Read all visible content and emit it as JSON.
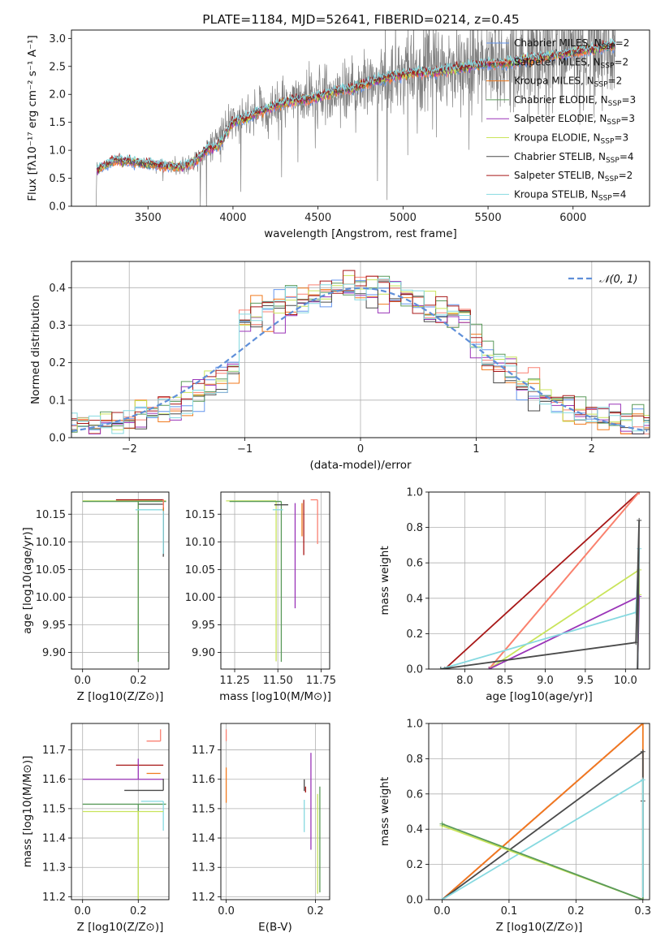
{
  "figure": {
    "title": "PLATE=1184, MJD=52641, FIBERID=0214, z=0.45"
  },
  "colors": {
    "data_grey": "#808080",
    "chabrier_miles": "#6495ED",
    "salpeter_miles": "#FA8072",
    "kroupa_miles": "#F07A1E",
    "chabrier_elodie": "#5A9A5A",
    "salpeter_elodie": "#9A34B8",
    "kroupa_elodie": "#C9E45A",
    "chabrier_stelib": "#4A4A4A",
    "salpeter_stelib": "#A81818",
    "kroupa_stelib": "#86D9E0",
    "normal_curve": "#5F8FD9",
    "grid": "#b0b0b0"
  },
  "legends": {
    "spectrum": [
      {
        "pre": "Chabrier MILES, N",
        "sub": "SSP",
        "post": "=2",
        "color_key": "chabrier_miles"
      },
      {
        "pre": "Salpeter MILES, N",
        "sub": "SSP",
        "post": "=2",
        "color_key": "salpeter_miles"
      },
      {
        "pre": "Kroupa MILES, N",
        "sub": "SSP",
        "post": "=2",
        "color_key": "kroupa_miles"
      },
      {
        "pre": "Chabrier ELODIE, N",
        "sub": "SSP",
        "post": "=3",
        "color_key": "chabrier_elodie"
      },
      {
        "pre": "Salpeter ELODIE, N",
        "sub": "SSP",
        "post": "=3",
        "color_key": "salpeter_elodie"
      },
      {
        "pre": "Kroupa ELODIE, N",
        "sub": "SSP",
        "post": "=3",
        "color_key": "kroupa_elodie"
      },
      {
        "pre": "Chabrier STELIB, N",
        "sub": "SSP",
        "post": "=4",
        "color_key": "chabrier_stelib"
      },
      {
        "pre": "Salpeter STELIB, N",
        "sub": "SSP",
        "post": "=2",
        "color_key": "salpeter_stelib"
      },
      {
        "pre": "Kroupa STELIB, N",
        "sub": "SSP",
        "post": "=4",
        "color_key": "kroupa_stelib"
      }
    ],
    "hist": [
      {
        "label": "𝒩(0, 1)",
        "color_key": "normal_curve"
      }
    ]
  },
  "chart_data": [
    {
      "id": "spectrum",
      "type": "line",
      "title": "PLATE=1184, MJD=52641, FIBERID=0214, z=0.45",
      "xlabel": "wavelength [Angstrom, rest frame]",
      "ylabel": "Flux [fλ10⁻¹⁷ erg cm⁻² s⁻¹ A⁻¹]",
      "xlim": [
        3050,
        6450
      ],
      "ylim": [
        0,
        3.15
      ],
      "xticks": [
        3500,
        4000,
        4500,
        5000,
        5500,
        6000
      ],
      "yticks": [
        0.0,
        0.5,
        1.0,
        1.5,
        2.0,
        2.5,
        3.0
      ],
      "grid": false,
      "legend_loc": "upper right",
      "continuum_knots": {
        "x": [
          3200,
          3300,
          3400,
          3500,
          3600,
          3700,
          3800,
          3900,
          4000,
          4100,
          4200,
          4300,
          4400,
          4500,
          4600,
          4700,
          4800,
          4900,
          5000,
          5100,
          5200,
          5300,
          5400,
          5500,
          5600,
          5700,
          5800,
          5900,
          6000,
          6100,
          6200,
          6250
        ],
        "y": [
          0.65,
          0.82,
          0.8,
          0.75,
          0.72,
          0.7,
          0.85,
          1.2,
          1.5,
          1.6,
          1.75,
          1.85,
          1.9,
          1.95,
          2.05,
          2.1,
          2.2,
          2.3,
          2.35,
          2.4,
          2.4,
          2.45,
          2.5,
          2.55,
          2.55,
          2.6,
          2.65,
          2.7,
          2.75,
          2.8,
          2.85,
          2.9
        ]
      },
      "series": [
        {
          "name": "Chabrier MILES, N_SSP=2",
          "color_key": "chabrier_miles"
        },
        {
          "name": "Salpeter MILES, N_SSP=2",
          "color_key": "salpeter_miles"
        },
        {
          "name": "Kroupa MILES, N_SSP=2",
          "color_key": "kroupa_miles"
        },
        {
          "name": "Chabrier ELODIE, N_SSP=3",
          "color_key": "chabrier_elodie"
        },
        {
          "name": "Salpeter ELODIE, N_SSP=3",
          "color_key": "salpeter_elodie"
        },
        {
          "name": "Kroupa ELODIE, N_SSP=3",
          "color_key": "kroupa_elodie"
        },
        {
          "name": "Chabrier STELIB, N_SSP=4",
          "color_key": "chabrier_stelib"
        },
        {
          "name": "Salpeter STELIB, N_SSP=2",
          "color_key": "salpeter_stelib"
        },
        {
          "name": "Kroupa STELIB, N_SSP=4",
          "color_key": "kroupa_stelib"
        }
      ]
    },
    {
      "id": "residuals",
      "type": "line",
      "xlabel": "(data-model)/error",
      "ylabel": "Normed distribution",
      "xlim": [
        -2.5,
        2.5
      ],
      "ylim": [
        0,
        0.47
      ],
      "xticks": [
        -2,
        -1,
        0,
        1,
        2
      ],
      "yticks": [
        0.0,
        0.1,
        0.2,
        0.3,
        0.4
      ],
      "grid": true,
      "legend_loc": "upper right",
      "normal_curve": {
        "mean": 0,
        "sigma": 1,
        "label": "𝒩(0, 1)"
      },
      "hist_bin_width": 0.1,
      "hist_offsets": [
        0.0,
        0.012,
        -0.01,
        0.018,
        -0.015,
        0.006,
        -0.02,
        0.022,
        -0.005
      ]
    },
    {
      "id": "age-vs-Z",
      "type": "scatter",
      "xlabel": "Z [log10(Z/Z⊙)]",
      "ylabel": "age  [log10(age/yr)]",
      "xlim": [
        -0.04,
        0.31
      ],
      "ylim": [
        9.87,
        10.19
      ],
      "xticks": [
        0.0,
        0.2
      ],
      "yticks": [
        9.9,
        9.95,
        10.0,
        10.05,
        10.1,
        10.15
      ],
      "grid": true,
      "crosses": [
        {
          "color_key": "kroupa_elodie",
          "x": 0.2,
          "xerr": [
            0.2,
            0.1
          ],
          "y": 10.174,
          "yerr": [
            0.29,
            0.0
          ]
        },
        {
          "color_key": "chabrier_elodie",
          "x": 0.2,
          "xerr": [
            0.2,
            0.1
          ],
          "y": 10.173,
          "yerr": [
            0.29,
            0.0
          ]
        },
        {
          "color_key": "salpeter_stelib",
          "x": 0.29,
          "xerr": [
            0.17,
            0.0
          ],
          "y": 10.176,
          "yerr": [
            0.1,
            0.0
          ]
        },
        {
          "color_key": "chabrier_stelib",
          "x": 0.29,
          "xerr": [
            0.09,
            0.0
          ],
          "y": 10.168,
          "yerr": [
            0.095,
            0.0
          ]
        },
        {
          "color_key": "kroupa_stelib",
          "x": 0.29,
          "xerr": [
            0.1,
            0.0
          ],
          "y": 10.158,
          "yerr": [
            0.08,
            0.0
          ]
        },
        {
          "color_key": "kroupa_miles",
          "x": 0.29,
          "xerr": [
            0.0,
            0.0
          ],
          "y": 10.176,
          "yerr": [
            0.02,
            0.0
          ]
        },
        {
          "color_key": "salpeter_miles",
          "x": 0.29,
          "xerr": [
            0.0,
            0.0
          ],
          "y": 10.177,
          "yerr": [
            0.015,
            0.0
          ]
        }
      ]
    },
    {
      "id": "age-vs-mass",
      "type": "scatter",
      "xlabel": "mass [log10(M/M⊙)]",
      "ylabel": "",
      "xlim": [
        11.17,
        11.8
      ],
      "ylim": [
        9.87,
        10.19
      ],
      "xticks": [
        11.25,
        11.5,
        11.75
      ],
      "yticks": [
        9.9,
        9.95,
        10.0,
        10.05,
        10.1,
        10.15
      ],
      "grid": true,
      "crosses": [
        {
          "color_key": "kroupa_elodie",
          "x": 11.49,
          "xerr": [
            0.29,
            0.0
          ],
          "y": 10.174,
          "yerr": [
            0.29,
            0.0
          ]
        },
        {
          "color_key": "chabrier_elodie",
          "x": 11.52,
          "xerr": [
            0.3,
            0.0
          ],
          "y": 10.173,
          "yerr": [
            0.29,
            0.0
          ]
        },
        {
          "color_key": "kroupa_stelib",
          "x": 11.53,
          "xerr": [
            0.06,
            0.0
          ],
          "y": 10.158,
          "yerr": [
            0.0,
            0.0
          ]
        },
        {
          "color_key": "chabrier_stelib",
          "x": 11.56,
          "xerr": [
            0.08,
            0.0
          ],
          "y": 10.167,
          "yerr": [
            0.0,
            0.0
          ]
        },
        {
          "color_key": "salpeter_elodie",
          "x": 11.6,
          "xerr": [
            0.0,
            0.0
          ],
          "y": 10.17,
          "yerr": [
            0.19,
            0.0
          ]
        },
        {
          "color_key": "kroupa_miles",
          "x": 11.64,
          "xerr": [
            0.0,
            0.0
          ],
          "y": 10.17,
          "yerr": [
            0.06,
            0.0
          ]
        },
        {
          "color_key": "salpeter_stelib",
          "x": 11.65,
          "xerr": [
            0.0,
            0.0
          ],
          "y": 10.176,
          "yerr": [
            0.1,
            0.0
          ]
        },
        {
          "color_key": "salpeter_miles",
          "x": 11.73,
          "xerr": [
            0.04,
            0.0
          ],
          "y": 10.176,
          "yerr": [
            0.08,
            0.0
          ]
        }
      ]
    },
    {
      "id": "weight-vs-age",
      "type": "line",
      "xlabel": "age  [log10(age/yr)]",
      "ylabel": "mass weight",
      "xlim": [
        7.55,
        10.3
      ],
      "ylim": [
        0,
        1.0
      ],
      "xticks": [
        8.0,
        8.5,
        9.0,
        9.5,
        10.0
      ],
      "yticks": [
        0.0,
        0.2,
        0.4,
        0.6,
        0.8,
        1.0
      ],
      "grid": true,
      "series": [
        {
          "color_key": "salpeter_stelib",
          "x": [
            7.75,
            10.17
          ],
          "y": [
            0.0,
            1.0
          ]
        },
        {
          "color_key": "kroupa_miles",
          "x": [
            8.3,
            10.17
          ],
          "y": [
            0.0,
            1.0
          ]
        },
        {
          "color_key": "salpeter_miles",
          "x": [
            8.3,
            10.17
          ],
          "y": [
            0.0,
            1.0
          ]
        },
        {
          "color_key": "kroupa_elodie",
          "x": [
            8.3,
            10.17,
            10.17,
            10.15
          ],
          "y": [
            0.0,
            0.56,
            0.42,
            0.0
          ]
        },
        {
          "color_key": "salpeter_elodie",
          "x": [
            8.3,
            10.17,
            10.15
          ],
          "y": [
            0.0,
            0.41,
            0.0
          ]
        },
        {
          "color_key": "kroupa_stelib",
          "x": [
            7.7,
            10.13,
            10.17,
            10.15
          ],
          "y": [
            0.0,
            0.32,
            0.68,
            0.0
          ]
        },
        {
          "color_key": "chabrier_stelib",
          "x": [
            7.7,
            10.13,
            10.17,
            10.15
          ],
          "y": [
            0.0,
            0.15,
            0.84,
            0.0
          ]
        }
      ]
    },
    {
      "id": "mass-vs-Z",
      "type": "scatter",
      "xlabel": "Z [log10(Z/Z⊙)]",
      "ylabel": "mass [log10(M/M⊙)]",
      "xlim": [
        -0.04,
        0.31
      ],
      "ylim": [
        11.19,
        11.79
      ],
      "xticks": [
        0.0,
        0.2
      ],
      "yticks": [
        11.2,
        11.3,
        11.4,
        11.5,
        11.6,
        11.7
      ],
      "grid": true,
      "crosses": [
        {
          "color_key": "salpeter_miles",
          "x": 0.28,
          "xerr": [
            0.05,
            0.0
          ],
          "y": 11.73,
          "yerr": [
            0.0,
            0.04
          ]
        },
        {
          "color_key": "salpeter_stelib",
          "x": 0.24,
          "xerr": [
            0.12,
            0.05
          ],
          "y": 11.648,
          "yerr": [
            0.0,
            0.0
          ]
        },
        {
          "color_key": "salpeter_elodie",
          "x": 0.2,
          "xerr": [
            0.2,
            0.09
          ],
          "y": 11.6,
          "yerr": [
            0.0,
            0.07
          ]
        },
        {
          "color_key": "kroupa_miles",
          "x": 0.28,
          "xerr": [
            0.05,
            0.0
          ],
          "y": 11.62,
          "yerr": [
            0.0,
            0.0
          ]
        },
        {
          "color_key": "chabrier_stelib",
          "x": 0.29,
          "xerr": [
            0.14,
            0.0
          ],
          "y": 11.562,
          "yerr": [
            0.0,
            0.04
          ]
        },
        {
          "color_key": "chabrier_elodie",
          "x": 0.2,
          "xerr": [
            0.2,
            0.1
          ],
          "y": 11.515,
          "yerr": [
            0.32,
            0.0
          ]
        },
        {
          "color_key": "kroupa_stelib",
          "x": 0.29,
          "xerr": [
            0.08,
            0.0
          ],
          "y": 11.525,
          "yerr": [
            0.1,
            0.0
          ]
        },
        {
          "color_key": "kroupa_elodie",
          "x": 0.2,
          "xerr": [
            0.2,
            0.09
          ],
          "y": 11.49,
          "yerr": [
            0.3,
            0.0
          ]
        }
      ]
    },
    {
      "id": "mass-vs-EBV",
      "type": "scatter",
      "xlabel": "E(B-V)",
      "ylabel": "",
      "xlim": [
        -0.012,
        0.232
      ],
      "ylim": [
        11.19,
        11.79
      ],
      "xticks": [
        0.0,
        0.2
      ],
      "yticks": [
        11.2,
        11.3,
        11.4,
        11.5,
        11.6,
        11.7
      ],
      "grid": true,
      "crosses": [
        {
          "color_key": "salpeter_miles",
          "x": 0.0,
          "xerr": [
            0.0,
            0.0
          ],
          "y": 11.73,
          "yerr": [
            0.0,
            0.04
          ]
        },
        {
          "color_key": "kroupa_miles",
          "x": 0.0,
          "xerr": [
            0.0,
            0.0
          ],
          "y": 11.6,
          "yerr": [
            0.08,
            0.04
          ]
        },
        {
          "color_key": "chabrier_stelib",
          "x": 0.175,
          "xerr": [
            0.0,
            0.0
          ],
          "y": 11.56,
          "yerr": [
            0.0,
            0.04
          ]
        },
        {
          "color_key": "salpeter_stelib",
          "x": 0.178,
          "xerr": [
            0.0,
            0.0
          ],
          "y": 11.555,
          "yerr": [
            0.0,
            0.02
          ]
        },
        {
          "color_key": "kroupa_stelib",
          "x": 0.175,
          "xerr": [
            0.0,
            0.0
          ],
          "y": 11.5,
          "yerr": [
            0.08,
            0.03
          ]
        },
        {
          "color_key": "salpeter_elodie",
          "x": 0.19,
          "xerr": [
            0.0,
            0.0
          ],
          "y": 11.52,
          "yerr": [
            0.16,
            0.17
          ]
        },
        {
          "color_key": "kroupa_elodie",
          "x": 0.205,
          "xerr": [
            0.0,
            0.0
          ],
          "y": 11.49,
          "yerr": [
            0.28,
            0.06
          ]
        },
        {
          "color_key": "chabrier_elodie",
          "x": 0.21,
          "xerr": [
            0.0,
            0.0
          ],
          "y": 11.515,
          "yerr": [
            0.3,
            0.06
          ]
        }
      ]
    },
    {
      "id": "weight-vs-Z",
      "type": "line",
      "xlabel": "Z [log10(Z/Z⊙)]",
      "ylabel": "mass weight",
      "xlim": [
        -0.02,
        0.31
      ],
      "ylim": [
        0,
        1.0
      ],
      "xticks": [
        0.0,
        0.1,
        0.2,
        0.3
      ],
      "yticks": [
        0.0,
        0.2,
        0.4,
        0.6,
        0.8,
        1.0
      ],
      "grid": true,
      "series": [
        {
          "color_key": "salpeter_stelib",
          "x": [
            0.0,
            0.3
          ],
          "y": [
            0.0,
            1.0
          ]
        },
        {
          "color_key": "salpeter_miles",
          "x": [
            0.0,
            0.3
          ],
          "y": [
            0.0,
            1.0
          ]
        },
        {
          "color_key": "kroupa_miles",
          "x": [
            0.0,
            0.3,
            0.3
          ],
          "y": [
            0.0,
            1.0,
            0.0
          ]
        },
        {
          "color_key": "chabrier_stelib",
          "x": [
            0.0,
            0.3,
            0.3,
            0.3
          ],
          "y": [
            0.0,
            0.84,
            0.56,
            0.0
          ]
        },
        {
          "color_key": "kroupa_stelib",
          "x": [
            0.0,
            0.3,
            0.3
          ],
          "y": [
            0.0,
            0.68,
            0.0
          ]
        },
        {
          "color_key": "kroupa_elodie",
          "x": [
            0.0,
            0.3
          ],
          "y": [
            0.42,
            0.0
          ]
        },
        {
          "color_key": "chabrier_elodie",
          "x": [
            0.0,
            0.3
          ],
          "y": [
            0.43,
            0.0
          ]
        }
      ]
    }
  ]
}
